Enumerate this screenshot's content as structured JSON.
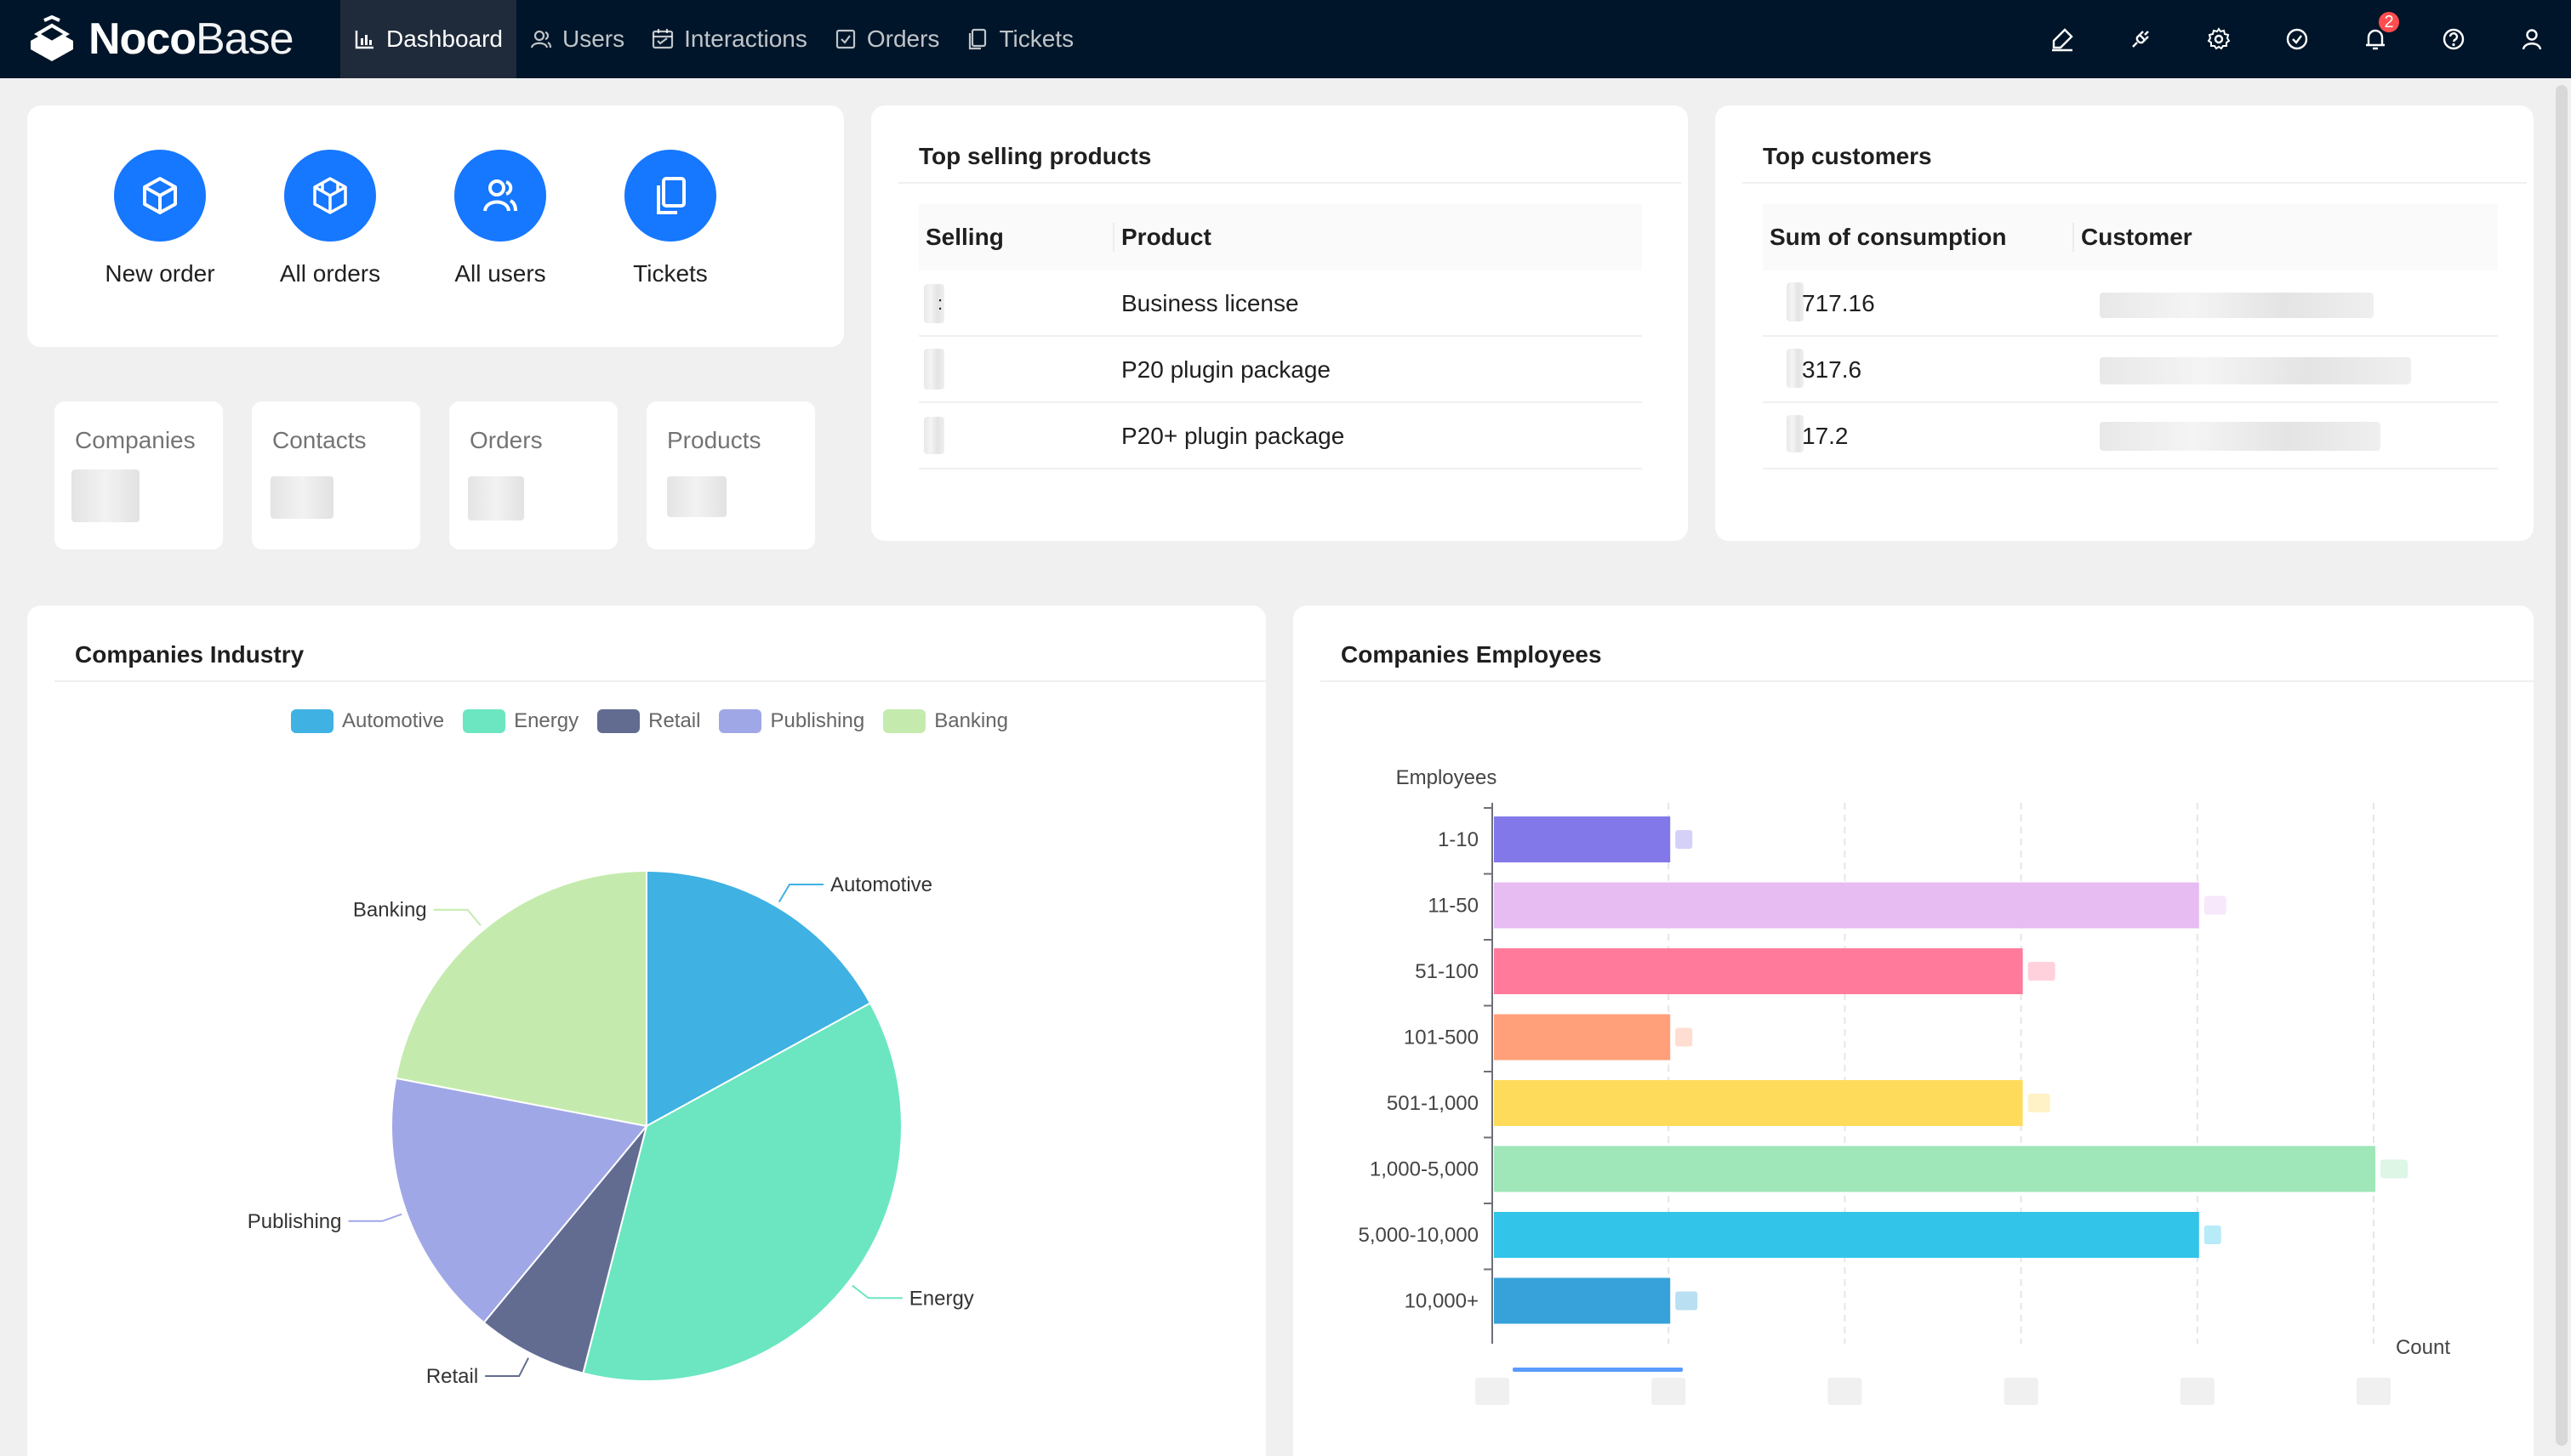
{
  "app": {
    "logo_bold": "Noco",
    "logo_light": "Base"
  },
  "nav": {
    "items": [
      {
        "label": "Dashboard",
        "icon": "bar-chart-icon",
        "active": true
      },
      {
        "label": "Users",
        "icon": "users-icon",
        "active": false
      },
      {
        "label": "Interactions",
        "icon": "calendar-icon",
        "active": false
      },
      {
        "label": "Orders",
        "icon": "check-square-icon",
        "active": false
      },
      {
        "label": "Tickets",
        "icon": "copy-icon",
        "active": false
      }
    ],
    "notification_count": "2",
    "right_icons": [
      "highlighter-icon",
      "plugin-icon",
      "gear-icon",
      "check-circle-icon",
      "bell-icon",
      "help-icon",
      "user-icon"
    ]
  },
  "shortcuts": [
    {
      "label": "New order",
      "icon": "cube-icon"
    },
    {
      "label": "All orders",
      "icon": "codesandbox-icon"
    },
    {
      "label": "All users",
      "icon": "users-icon"
    },
    {
      "label": "Tickets",
      "icon": "copy-icon"
    }
  ],
  "stats": [
    {
      "title": "Companies"
    },
    {
      "title": "Contacts"
    },
    {
      "title": "Orders"
    },
    {
      "title": "Products"
    }
  ],
  "top_products": {
    "title": "Top selling products",
    "columns": [
      "Selling",
      "Product"
    ],
    "rows": [
      {
        "selling": ":",
        "product": "Business license"
      },
      {
        "selling": "",
        "product": "P20 plugin package"
      },
      {
        "selling": "",
        "product": "P20+ plugin package"
      }
    ]
  },
  "top_customers": {
    "title": "Top customers",
    "columns": [
      "Sum of consumption",
      "Customer"
    ],
    "rows": [
      {
        "sum": "717.16",
        "customer": ""
      },
      {
        "sum": "317.6",
        "customer": ""
      },
      {
        "sum": "17.2",
        "customer": ""
      }
    ]
  },
  "industry_chart": {
    "title": "Companies Industry",
    "colors": {
      "Automotive": "#3fb1e3",
      "Energy": "#6be6c1",
      "Retail": "#626c91",
      "Publishing": "#a0a7e6",
      "Banking": "#c4ebad"
    }
  },
  "employees_chart": {
    "title": "Companies Employees",
    "colors": [
      "#8378ea",
      "#e7bcf3",
      "#ff7a9b",
      "#ffa07a",
      "#ffdb5c",
      "#9fe6b8",
      "#32c5e9",
      "#37a2da"
    ]
  },
  "chart_data": [
    {
      "type": "pie",
      "title": "Companies Industry",
      "legend": "top",
      "categories": [
        "Automotive",
        "Energy",
        "Retail",
        "Publishing",
        "Banking"
      ],
      "values": [
        17,
        37,
        7,
        17,
        22
      ]
    },
    {
      "type": "bar",
      "orientation": "horizontal",
      "title": "Companies Employees",
      "ylabel": "Employees",
      "xlabel": "Count",
      "categories": [
        "1-10",
        "11-50",
        "51-100",
        "101-500",
        "501-1,000",
        "1,000-5,000",
        "5,000-10,000",
        "10,000+"
      ],
      "values": [
        1,
        4,
        3,
        1,
        3,
        5,
        4,
        1
      ],
      "xlim": [
        0,
        5
      ],
      "grid": true
    }
  ]
}
